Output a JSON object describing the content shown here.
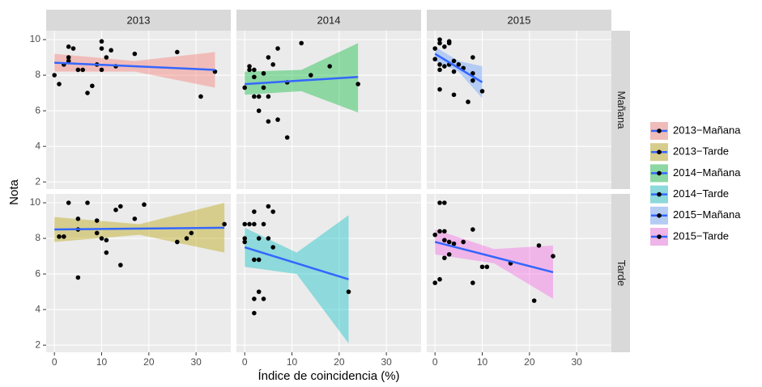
{
  "chart_data": {
    "type": "scatter",
    "x_label": "Índice de coincidencia (%)",
    "y_label": "Nota",
    "columns": [
      "2013",
      "2014",
      "2015"
    ],
    "rows": [
      "Mañana",
      "Tarde"
    ],
    "xlim": [
      -1.75,
      37.35
    ],
    "ylim": [
      1.6,
      10.5
    ],
    "xticks": [
      0,
      10,
      20,
      30
    ],
    "yticks": [
      2,
      4,
      6,
      8,
      10
    ],
    "grid": true,
    "legend": "right",
    "point_color": "#000000",
    "fit_color": "#3366ff",
    "series": [
      {
        "name": "2013−Mañana",
        "color": "#f8766d",
        "x": [
          0,
          1,
          2,
          3,
          3,
          3,
          4,
          5,
          6,
          7,
          8,
          9,
          10,
          10,
          10,
          11,
          12,
          13,
          17,
          26,
          31,
          34
        ],
        "values": [
          8,
          7.5,
          8.6,
          9.6,
          9,
          8.8,
          9.5,
          8.3,
          8.3,
          7,
          7.4,
          8.6,
          9.9,
          9.5,
          8.3,
          9,
          9.4,
          8.5,
          9.2,
          9.3,
          6.8,
          8.2
        ],
        "fit_x": [
          0,
          34
        ],
        "fit_values": [
          8.7,
          8.3
        ],
        "band_x": [
          0,
          17,
          34
        ],
        "band_lower": [
          8.2,
          8.2,
          7.3
        ],
        "band_upper": [
          9.2,
          8.8,
          9.3
        ]
      },
      {
        "name": "2013−Tarde",
        "color": "#b79f00",
        "x": [
          1,
          2,
          3,
          5,
          5,
          5,
          7,
          9,
          9,
          10,
          11,
          11,
          13,
          14,
          14,
          17,
          19,
          26,
          28,
          29,
          36
        ],
        "values": [
          8.1,
          8.1,
          10,
          9.1,
          8.5,
          5.8,
          10,
          9,
          8.3,
          8,
          7.9,
          7.2,
          9.6,
          9.8,
          6.5,
          9.1,
          9.9,
          7.8,
          8,
          8.3,
          8.8
        ],
        "fit_x": [
          0,
          36
        ],
        "fit_values": [
          8.5,
          8.6
        ],
        "band_x": [
          0,
          18,
          36
        ],
        "band_lower": [
          7.8,
          8.2,
          7.2
        ],
        "band_upper": [
          9.2,
          8.8,
          10
        ]
      },
      {
        "name": "2014−Mañana",
        "color": "#00ba38",
        "x": [
          0,
          1,
          1,
          2,
          2,
          2,
          3,
          3,
          4,
          4,
          5,
          5,
          5,
          6,
          7,
          7,
          9,
          9,
          12,
          14,
          18,
          24
        ],
        "values": [
          7.3,
          8.5,
          8.3,
          8.3,
          7.9,
          6.8,
          6.8,
          6,
          8.1,
          7.3,
          9,
          5.4,
          6.8,
          8.6,
          9.5,
          5.5,
          7.6,
          4.5,
          9.8,
          8,
          8.5,
          7.5
        ],
        "fit_x": [
          0,
          24
        ],
        "fit_values": [
          7.5,
          7.9
        ],
        "band_x": [
          0,
          12,
          24
        ],
        "band_lower": [
          6.9,
          7.1,
          5.9
        ],
        "band_upper": [
          8.2,
          8.3,
          9.8
        ]
      },
      {
        "name": "2014−Tarde",
        "color": "#00bfc4",
        "x": [
          0,
          0,
          0,
          1,
          2,
          2,
          2,
          2,
          2,
          3,
          3,
          3,
          4,
          4,
          5,
          5,
          6,
          6,
          22
        ],
        "values": [
          8.8,
          8,
          7.8,
          8.8,
          9.5,
          8.8,
          6.8,
          4.6,
          3.8,
          6.8,
          5,
          8,
          8.8,
          4.6,
          9.8,
          8,
          7.5,
          9.5,
          5
        ],
        "fit_x": [
          0,
          22
        ],
        "fit_values": [
          7.5,
          5.7
        ],
        "band_x": [
          0,
          11,
          22
        ],
        "band_lower": [
          6.4,
          6,
          2.1
        ],
        "band_upper": [
          8.6,
          7.2,
          9.3
        ]
      },
      {
        "name": "2015−Mañana",
        "color": "#619cff",
        "x": [
          0,
          0,
          1,
          1,
          1,
          1,
          1,
          2,
          2,
          3,
          3,
          3,
          4,
          4,
          4,
          5,
          6,
          7,
          8,
          8,
          8,
          10
        ],
        "values": [
          9.5,
          8.9,
          10,
          9.8,
          8.6,
          7.2,
          8.3,
          9.6,
          8.5,
          9.8,
          9.9,
          8.6,
          8.8,
          8.2,
          6.9,
          8.6,
          8.4,
          6.5,
          9,
          8.1,
          7.7,
          7.1
        ],
        "fit_x": [
          0,
          10
        ],
        "fit_values": [
          9.2,
          7.6
        ],
        "band_x": [
          0,
          5,
          10
        ],
        "band_lower": [
          8.8,
          8.2,
          6.7
        ],
        "band_upper": [
          9.6,
          8.8,
          8.5
        ]
      },
      {
        "name": "2015−Tarde",
        "color": "#f564e3",
        "x": [
          0,
          0,
          1,
          1,
          1,
          2,
          2,
          2,
          2,
          3,
          3,
          4,
          6,
          8,
          8,
          10,
          11,
          16,
          21,
          22,
          25
        ],
        "values": [
          8.2,
          5.5,
          8.4,
          5.7,
          10,
          10,
          8.4,
          7.9,
          6.9,
          7.8,
          7.1,
          7.7,
          7.8,
          8.5,
          5.5,
          6.4,
          6.4,
          6.6,
          4.5,
          7.6,
          7
        ],
        "fit_x": [
          0,
          25
        ],
        "fit_values": [
          7.8,
          6.1
        ],
        "band_x": [
          0,
          12.5,
          25
        ],
        "band_lower": [
          7.1,
          6.6,
          4.6
        ],
        "band_upper": [
          8.5,
          7.4,
          7.6
        ]
      }
    ]
  }
}
